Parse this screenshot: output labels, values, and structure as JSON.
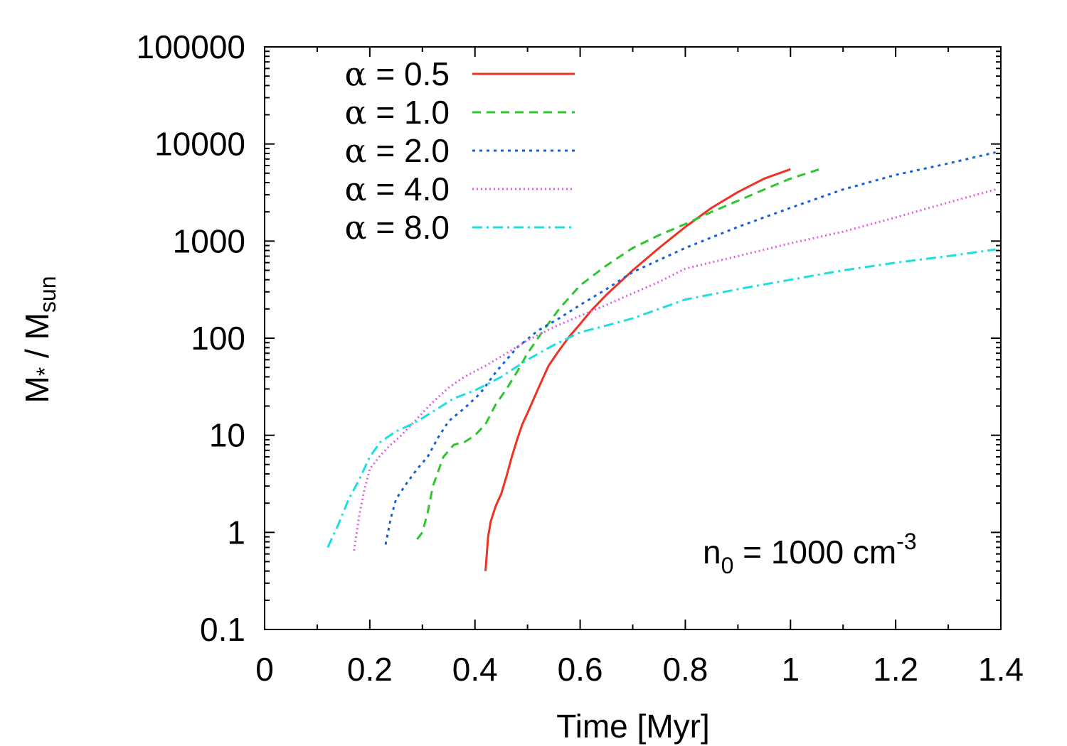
{
  "chart_data": {
    "type": "line",
    "xlabel": "Time [Myr]",
    "ylabel": {
      "main": "M",
      "star": "*",
      "sep": " / M",
      "sub": "sun"
    },
    "xlim": [
      0,
      1.4
    ],
    "ylim": [
      0.1,
      100000
    ],
    "yscale": "log",
    "xticks": [
      {
        "value": 0,
        "label": "0"
      },
      {
        "value": 0.2,
        "label": "0.2"
      },
      {
        "value": 0.4,
        "label": "0.4"
      },
      {
        "value": 0.6,
        "label": "0.6"
      },
      {
        "value": 0.8,
        "label": "0.8"
      },
      {
        "value": 1.0,
        "label": "1"
      },
      {
        "value": 1.2,
        "label": "1.2"
      },
      {
        "value": 1.4,
        "label": "1.4"
      }
    ],
    "yticks": [
      {
        "value": 0.1,
        "label": "0.1"
      },
      {
        "value": 1,
        "label": "1"
      },
      {
        "value": 10,
        "label": "10"
      },
      {
        "value": 100,
        "label": "100"
      },
      {
        "value": 1000,
        "label": "1000"
      },
      {
        "value": 10000,
        "label": "10000"
      },
      {
        "value": 100000,
        "label": "100000"
      }
    ],
    "legend_position": "top-left",
    "annotation": {
      "main": "n",
      "sub": "0",
      "mid": " = 1000 cm",
      "sup": "-3"
    },
    "series": [
      {
        "name": "α = 0.5",
        "greek": "α",
        "value_text": " = 0.5",
        "color": "#ee3224",
        "dash": "",
        "x": [
          0.42,
          0.425,
          0.43,
          0.44,
          0.45,
          0.46,
          0.47,
          0.48,
          0.49,
          0.5,
          0.52,
          0.54,
          0.56,
          0.58,
          0.6,
          0.62,
          0.65,
          0.7,
          0.75,
          0.8,
          0.85,
          0.9,
          0.95,
          1.0
        ],
        "y": [
          0.4,
          0.9,
          1.3,
          1.9,
          2.5,
          3.8,
          6.0,
          9.0,
          13,
          17,
          30,
          52,
          75,
          105,
          140,
          190,
          280,
          500,
          850,
          1400,
          2200,
          3200,
          4400,
          5500
        ]
      },
      {
        "name": "α = 1.0",
        "greek": "α",
        "value_text": " = 1.0",
        "color": "#2ec52e",
        "dash": "12,8",
        "x": [
          0.29,
          0.3,
          0.31,
          0.32,
          0.34,
          0.36,
          0.38,
          0.4,
          0.42,
          0.44,
          0.46,
          0.48,
          0.5,
          0.53,
          0.56,
          0.6,
          0.65,
          0.7,
          0.75,
          0.8,
          0.85,
          0.9,
          0.95,
          1.0,
          1.06
        ],
        "y": [
          0.85,
          1.0,
          1.6,
          3.0,
          6.0,
          8.0,
          8.5,
          10,
          13,
          21,
          30,
          45,
          70,
          120,
          200,
          350,
          560,
          850,
          1150,
          1500,
          2000,
          2600,
          3400,
          4400,
          5600
        ]
      },
      {
        "name": "α = 2.0",
        "greek": "α",
        "value_text": " = 2.0",
        "color": "#1560d9",
        "dash": "4,6",
        "x": [
          0.23,
          0.24,
          0.25,
          0.27,
          0.29,
          0.31,
          0.33,
          0.35,
          0.38,
          0.41,
          0.44,
          0.48,
          0.52,
          0.56,
          0.6,
          0.65,
          0.7,
          0.8,
          0.9,
          1.0,
          1.1,
          1.2,
          1.3,
          1.39
        ],
        "y": [
          0.75,
          1.4,
          2.2,
          3.2,
          4.5,
          6.0,
          9.5,
          14,
          19,
          27,
          45,
          80,
          120,
          160,
          220,
          320,
          480,
          850,
          1400,
          2200,
          3400,
          4800,
          6300,
          8200
        ]
      },
      {
        "name": "α = 4.0",
        "greek": "α",
        "value_text": " = 4.0",
        "color": "#e061e0",
        "dash": "2,4",
        "x": [
          0.17,
          0.18,
          0.19,
          0.2,
          0.22,
          0.24,
          0.26,
          0.28,
          0.3,
          0.32,
          0.35,
          0.38,
          0.42,
          0.46,
          0.5,
          0.55,
          0.6,
          0.65,
          0.7,
          0.75,
          0.8,
          0.9,
          1.0,
          1.1,
          1.2,
          1.3,
          1.39
        ],
        "y": [
          0.65,
          1.5,
          2.8,
          4.5,
          6.2,
          8.0,
          10,
          13,
          17,
          22,
          31,
          40,
          52,
          70,
          95,
          130,
          170,
          220,
          290,
          380,
          520,
          700,
          950,
          1250,
          1750,
          2500,
          3400
        ]
      },
      {
        "name": "α = 8.0",
        "greek": "α",
        "value_text": " = 8.0",
        "color": "#1fdee0",
        "dash": "14,6,3,6",
        "x": [
          0.12,
          0.14,
          0.16,
          0.18,
          0.2,
          0.22,
          0.25,
          0.28,
          0.3,
          0.33,
          0.36,
          0.4,
          0.45,
          0.5,
          0.55,
          0.6,
          0.65,
          0.7,
          0.8,
          0.9,
          1.0,
          1.1,
          1.2,
          1.3,
          1.39
        ],
        "y": [
          0.7,
          1.2,
          2.2,
          3.5,
          6.0,
          8.5,
          11,
          13,
          15,
          19,
          24,
          29,
          40,
          60,
          85,
          115,
          135,
          160,
          250,
          320,
          400,
          500,
          600,
          700,
          820
        ]
      }
    ]
  }
}
